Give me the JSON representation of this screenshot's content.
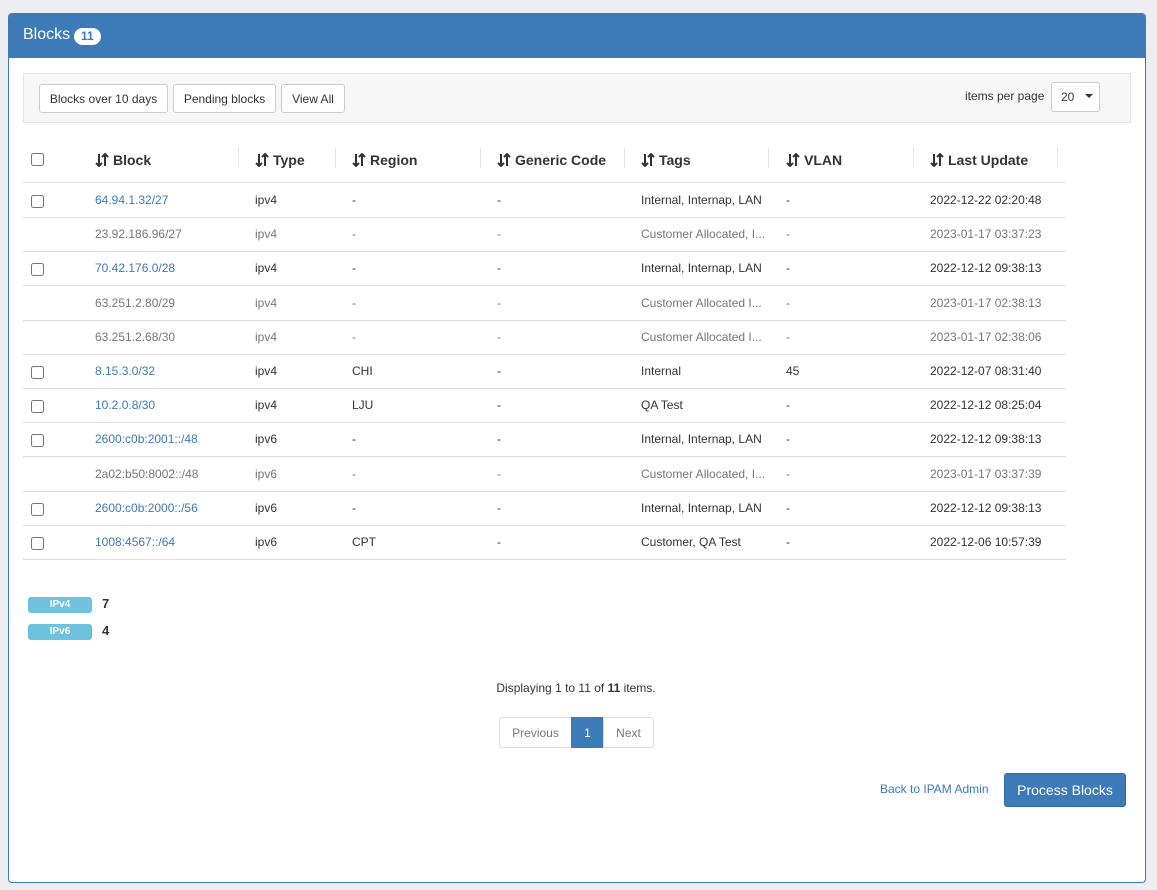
{
  "panel": {
    "title": "Blocks",
    "count": "11"
  },
  "toolbar": {
    "buttons": [
      "Blocks over 10 days",
      "Pending blocks",
      "View All"
    ],
    "items_per_page_label": "items per page",
    "items_per_page": "20"
  },
  "table": {
    "columns": [
      "Block",
      "Type",
      "Region",
      "Generic Code",
      "Tags",
      "VLAN",
      "Last Update"
    ],
    "rows": [
      {
        "selectable": true,
        "cells": [
          "64.94.1.32/27",
          "ipv4",
          "-",
          "-",
          "Internal, Internap, LAN",
          "-",
          "2022-12-22 02:20:48"
        ]
      },
      {
        "selectable": false,
        "cells": [
          "23.92.186.96/27",
          "ipv4",
          "-",
          "-",
          "Customer Allocated, I...",
          "-",
          "2023-01-17 03:37:23"
        ]
      },
      {
        "selectable": true,
        "cells": [
          "70.42.176.0/28",
          "ipv4",
          "-",
          "-",
          "Internal, Internap, LAN",
          "-",
          "2022-12-12 09:38:13"
        ]
      },
      {
        "selectable": false,
        "cells": [
          "63.251.2.80/29",
          "ipv4",
          "-",
          "-",
          "Customer Allocated I...",
          "-",
          "2023-01-17 02:38:13"
        ]
      },
      {
        "selectable": false,
        "cells": [
          "63.251.2.68/30",
          "ipv4",
          "-",
          "-",
          "Customer Allocated I...",
          "-",
          "2023-01-17 02:38:06"
        ]
      },
      {
        "selectable": true,
        "cells": [
          "8.15.3.0/32",
          "ipv4",
          "CHI",
          "-",
          "Internal",
          "45",
          "2022-12-07 08:31:40"
        ]
      },
      {
        "selectable": true,
        "cells": [
          "10.2.0.8/30",
          "ipv4",
          "LJU",
          "-",
          "QA Test",
          "-",
          "2022-12-12 08:25:04"
        ]
      },
      {
        "selectable": true,
        "cells": [
          "2600:c0b:2001::/48",
          "ipv6",
          "-",
          "-",
          "Internal, Internap, LAN",
          "-",
          "2022-12-12 09:38:13"
        ]
      },
      {
        "selectable": false,
        "cells": [
          "2a02:b50:8002::/48",
          "ipv6",
          "-",
          "-",
          "Customer Allocated, I...",
          "-",
          "2023-01-17 03:37:39"
        ]
      },
      {
        "selectable": true,
        "cells": [
          "2600:c0b:2000::/56",
          "ipv6",
          "-",
          "-",
          "Internal, Internap, LAN",
          "-",
          "2022-12-12 09:38:13"
        ]
      },
      {
        "selectable": true,
        "cells": [
          "1008:4567::/64",
          "ipv6",
          "CPT",
          "-",
          "Customer, QA Test",
          "-",
          "2022-12-06 10:57:39"
        ]
      }
    ]
  },
  "summary": [
    {
      "label": "IPv4",
      "count": 7
    },
    {
      "label": "IPv6",
      "count": 4
    }
  ],
  "footer": {
    "displaying": [
      "Displaying 1 to 11 of",
      "11",
      "items."
    ],
    "pagination": [
      "Previous",
      "1",
      "Next"
    ],
    "back_link": "Back to IPAM Admin",
    "action_button": "Process Blocks"
  }
}
